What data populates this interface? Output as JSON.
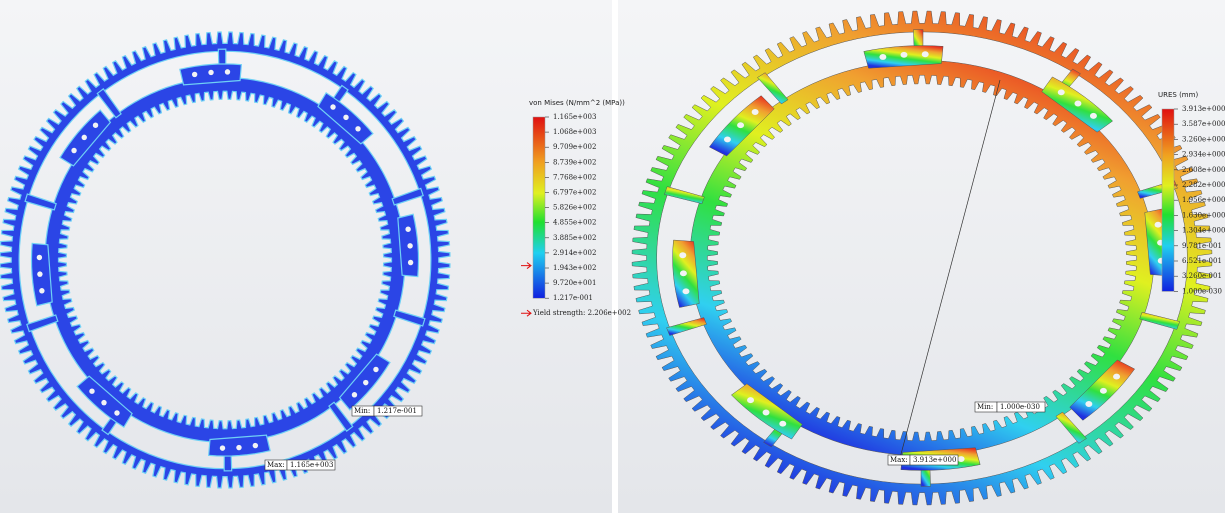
{
  "panels": [
    {
      "legend": {
        "title": "von Mises (N/mm^2 (MPa))",
        "labels": [
          "1.165e+003",
          "1.068e+003",
          "9.709e+002",
          "8.739e+002",
          "7.768e+002",
          "6.797e+002",
          "5.826e+002",
          "4.855e+002",
          "3.885e+002",
          "2.914e+002",
          "1.943e+002",
          "9.720e+001",
          "1.217e-001"
        ],
        "yield": "Yield strength: 2.206e+002"
      },
      "min": {
        "label": "Min:",
        "value": "1.217e-001"
      },
      "max": {
        "label": "Max:",
        "value": "1.165e+003"
      }
    },
    {
      "legend": {
        "title": "URES (mm)",
        "labels": [
          "3.913e+000",
          "3.587e+000",
          "3.260e+000",
          "2.934e+000",
          "2.608e+000",
          "2.282e+000",
          "1.956e+000",
          "1.630e+000",
          "1.304e+000",
          "9.781e-001",
          "6.521e-001",
          "3.260e-001",
          "1.000e-030"
        ]
      },
      "min": {
        "label": "Min:",
        "value": "1.000e-030"
      },
      "max": {
        "label": "Max:",
        "value": "3.913e+000"
      }
    }
  ]
}
